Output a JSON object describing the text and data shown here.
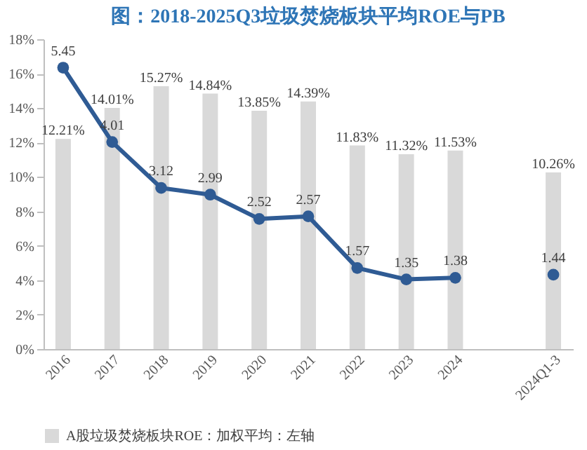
{
  "chart_data": {
    "type": "bar",
    "title": "图：2018-2025Q3垃圾焚烧板块平均ROE与PB",
    "categories": [
      "2016",
      "2017",
      "2018",
      "2019",
      "2020",
      "2021",
      "2022",
      "2023",
      "2024",
      null,
      "2024Q1-3"
    ],
    "series": [
      {
        "name": "A股垃圾焚烧板块ROE：加权平均：左轴",
        "color": "#d9d9d9",
        "values": [
          12.21,
          14.01,
          15.27,
          14.84,
          13.85,
          14.39,
          11.83,
          11.32,
          11.53,
          null,
          10.26
        ],
        "value_labels": [
          "12.21%",
          "14.01%",
          "15.27%",
          "14.84%",
          "13.85%",
          "14.39%",
          "11.83%",
          "11.32%",
          "11.53%",
          null,
          "10.26%"
        ]
      },
      {
        "type": "line",
        "axis": "y2",
        "color": "#2f5b94",
        "values": [
          5.45,
          4.01,
          3.12,
          2.99,
          2.52,
          2.57,
          1.57,
          1.35,
          1.38,
          null,
          1.44
        ]
      }
    ],
    "ylim": [
      0,
      18
    ],
    "yticks": [
      {
        "value": 0,
        "label": "0%"
      },
      {
        "value": 2,
        "label": "2%"
      },
      {
        "value": 4,
        "label": "4%"
      },
      {
        "value": 6,
        "label": "6%"
      },
      {
        "value": 8,
        "label": "8%"
      },
      {
        "value": 10,
        "label": "10%"
      },
      {
        "value": 12,
        "label": "12%"
      },
      {
        "value": 14,
        "label": "14%"
      },
      {
        "value": 16,
        "label": "16%"
      },
      {
        "value": 18,
        "label": "18%"
      }
    ],
    "y2lim": [
      0,
      6
    ],
    "data_labels": true,
    "marker": "circle",
    "line_style": "solid",
    "grid": false,
    "legend": "bottom"
  }
}
